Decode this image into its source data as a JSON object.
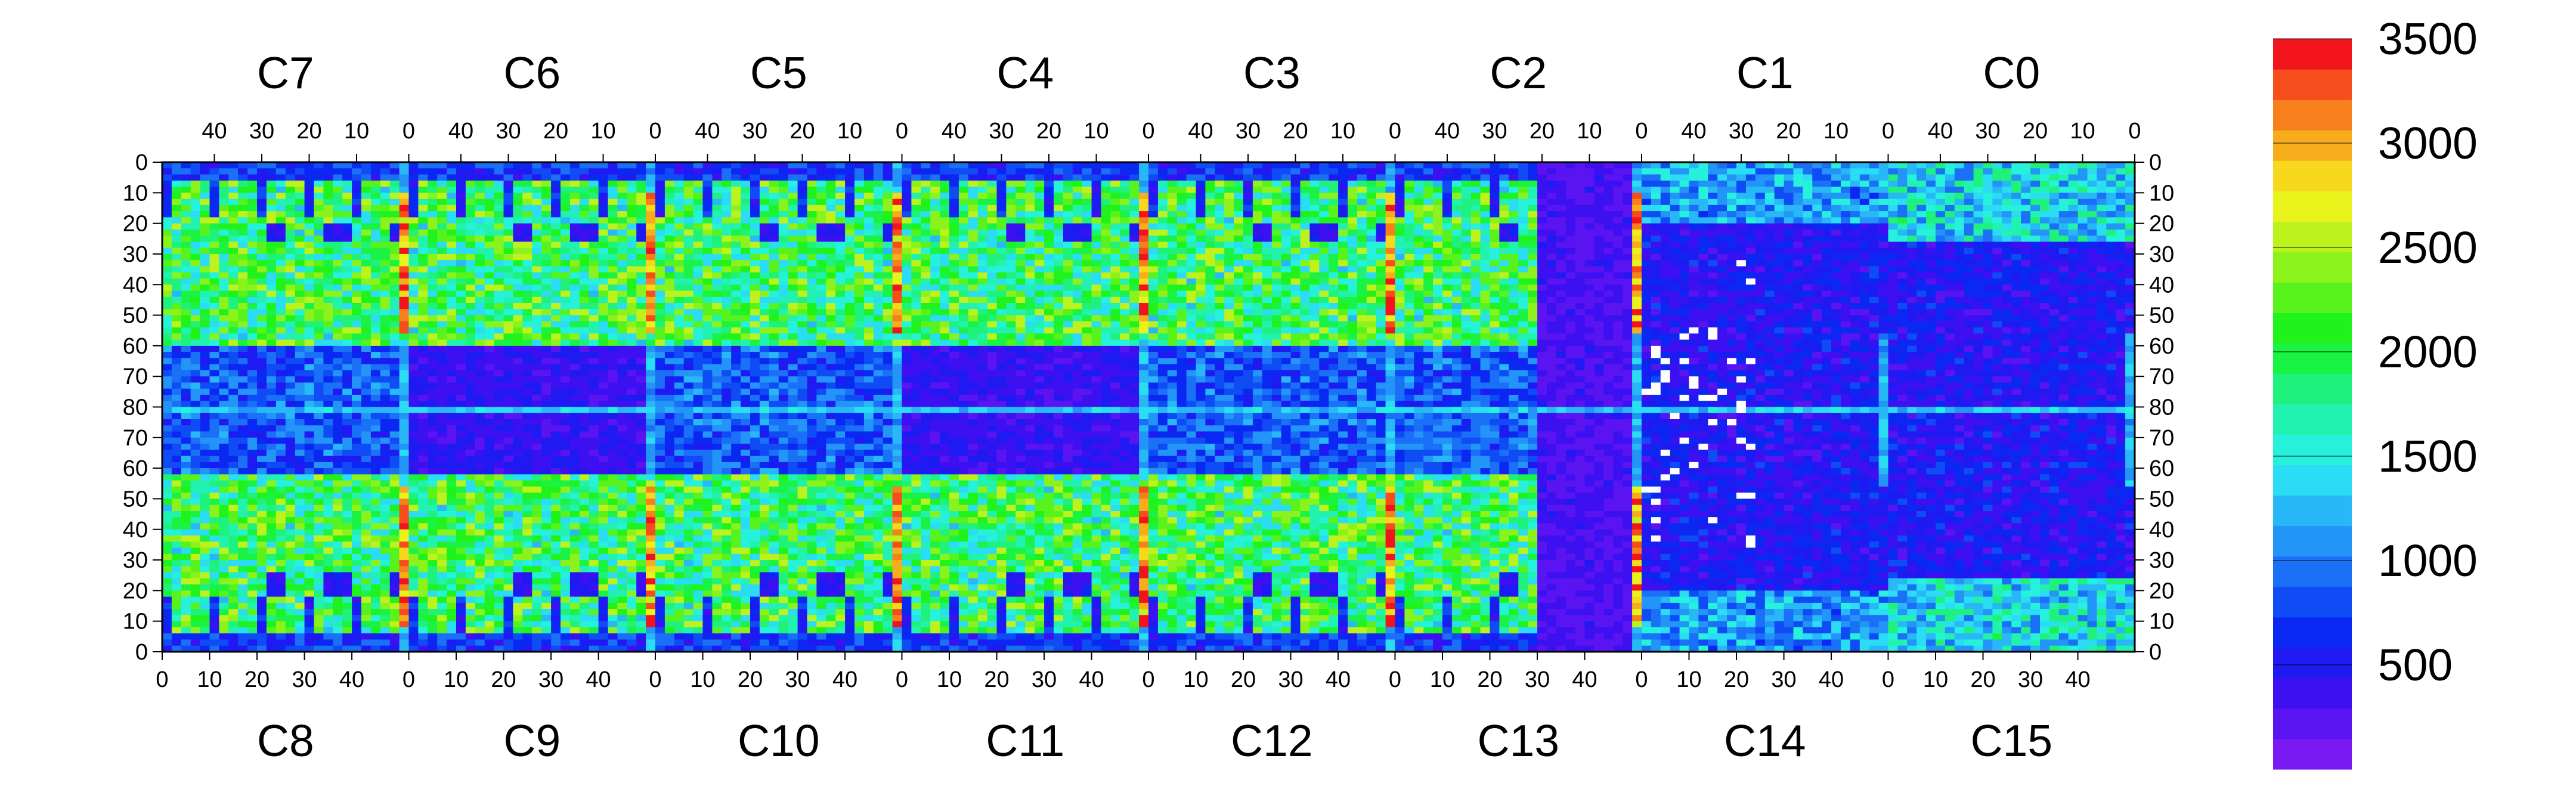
{
  "chart_data": {
    "type": "heatmap",
    "title": "",
    "xlabel": "",
    "ylabel": "",
    "top_chip_labels": [
      "C7",
      "C6",
      "C5",
      "C4",
      "C3",
      "C2",
      "C1",
      "C0"
    ],
    "bottom_chip_labels": [
      "C8",
      "C9",
      "C10",
      "C11",
      "C12",
      "C13",
      "C14",
      "C15"
    ],
    "top_x_ticks": [
      "40",
      "30",
      "20",
      "10",
      "0"
    ],
    "bottom_x_ticks": [
      "0",
      "10",
      "20",
      "30",
      "40"
    ],
    "y_ticks": [
      "0",
      "10",
      "20",
      "30",
      "40",
      "50",
      "60",
      "70",
      "80",
      "70",
      "60",
      "50",
      "40",
      "30",
      "20",
      "10",
      "0"
    ],
    "colorbar": {
      "min": 0,
      "max": 3500,
      "tick_labels": [
        "500",
        "1000",
        "1500",
        "2000",
        "2500",
        "3000",
        "3500"
      ],
      "colors": [
        "#7a1af2",
        "#5a14f2",
        "#3d10f2",
        "#1f1af2",
        "#0a28f2",
        "#0f4cf5",
        "#1a70f7",
        "#2394f8",
        "#28b8f7",
        "#2adcf4",
        "#26f2dc",
        "#22f2b0",
        "#1ef27c",
        "#1af244",
        "#20f21c",
        "#58f21c",
        "#8cf21c",
        "#bef21c",
        "#eaf21c",
        "#f7d81c",
        "#f7ac1c",
        "#f7801c",
        "#f74c1c",
        "#f2141c"
      ]
    },
    "grid_cols": 8,
    "cols_per_chip": 52,
    "rows_per_half": 80,
    "cells": "32-bit pixel occupancy map, values 0-3500"
  }
}
